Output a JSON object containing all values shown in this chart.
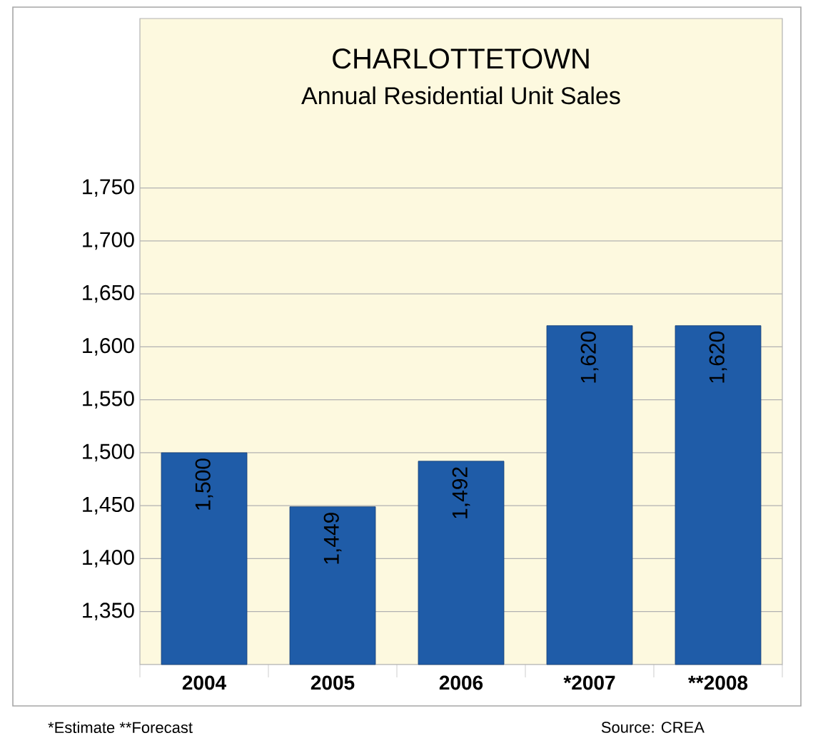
{
  "chart_data": {
    "type": "bar",
    "title": "CHARLOTTETOWN",
    "subtitle": "Annual Residential Unit Sales",
    "categories": [
      "2004",
      "2005",
      "2006",
      "*2007",
      "**2008"
    ],
    "values": [
      1500,
      1449,
      1492,
      1620,
      1620
    ],
    "value_labels": [
      "1,500",
      "1,449",
      "1,492",
      "1,620",
      "1,620"
    ],
    "color": "#1f5ca8",
    "ylim": [
      1300,
      1910
    ],
    "yticks": [
      {
        "value": 1350,
        "label": "1,350"
      },
      {
        "value": 1400,
        "label": "1,400"
      },
      {
        "value": 1450,
        "label": "1,450"
      },
      {
        "value": 1500,
        "label": "1,500"
      },
      {
        "value": 1550,
        "label": "1,550"
      },
      {
        "value": 1600,
        "label": "1,600"
      },
      {
        "value": 1650,
        "label": "1,650"
      },
      {
        "value": 1700,
        "label": "1,700"
      },
      {
        "value": 1750,
        "label": "1,750"
      }
    ],
    "grid": "y",
    "annotations": [
      "*Estimate  **Forecast",
      "Source: CREA"
    ]
  }
}
